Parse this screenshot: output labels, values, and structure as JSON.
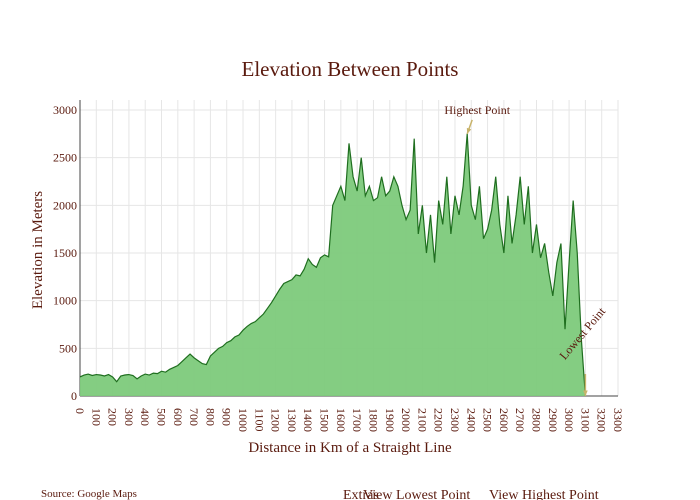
{
  "chart_data": {
    "type": "area",
    "title": "Elevation Between Points",
    "xlabel": "Distance in Km of a Straight Line",
    "ylabel": "Elevation in Meters",
    "x": [
      0,
      25,
      50,
      75,
      100,
      125,
      150,
      175,
      200,
      225,
      250,
      275,
      300,
      325,
      350,
      375,
      400,
      425,
      450,
      475,
      500,
      525,
      550,
      575,
      600,
      625,
      650,
      675,
      700,
      725,
      750,
      775,
      800,
      825,
      850,
      875,
      900,
      925,
      950,
      975,
      1000,
      1025,
      1050,
      1075,
      1100,
      1125,
      1150,
      1175,
      1200,
      1225,
      1250,
      1275,
      1300,
      1325,
      1350,
      1375,
      1400,
      1425,
      1450,
      1475,
      1500,
      1525,
      1550,
      1575,
      1600,
      1625,
      1650,
      1675,
      1700,
      1725,
      1750,
      1775,
      1800,
      1825,
      1850,
      1875,
      1900,
      1925,
      1950,
      1975,
      2000,
      2025,
      2050,
      2075,
      2100,
      2125,
      2150,
      2175,
      2200,
      2225,
      2250,
      2275,
      2300,
      2325,
      2350,
      2375,
      2400,
      2425,
      2450,
      2475,
      2500,
      2525,
      2550,
      2575,
      2600,
      2625,
      2650,
      2675,
      2700,
      2725,
      2750,
      2775,
      2800,
      2825,
      2850,
      2875,
      2900,
      2925,
      2950,
      2975,
      3000,
      3025,
      3050,
      3075,
      3100
    ],
    "values": [
      200,
      220,
      230,
      215,
      225,
      220,
      210,
      225,
      200,
      150,
      210,
      220,
      225,
      215,
      180,
      210,
      230,
      220,
      240,
      235,
      260,
      250,
      280,
      300,
      320,
      360,
      400,
      440,
      400,
      370,
      340,
      330,
      420,
      460,
      500,
      520,
      560,
      580,
      620,
      640,
      690,
      730,
      760,
      780,
      820,
      860,
      920,
      980,
      1050,
      1120,
      1180,
      1200,
      1220,
      1270,
      1260,
      1330,
      1440,
      1380,
      1350,
      1450,
      1480,
      1460,
      2000,
      2100,
      2200,
      2050,
      2650,
      2300,
      2150,
      2500,
      2100,
      2200,
      2050,
      2080,
      2300,
      2100,
      2150,
      2300,
      2200,
      2000,
      1850,
      1950,
      2700,
      1700,
      2000,
      1500,
      1900,
      1400,
      2050,
      1800,
      2300,
      1700,
      2100,
      1900,
      2200,
      2750,
      2000,
      1850,
      2200,
      1650,
      1750,
      1950,
      2300,
      1800,
      1500,
      2100,
      1600,
      1900,
      2300,
      1800,
      2200,
      1500,
      1800,
      1450,
      1600,
      1300,
      1050,
      1400,
      1600,
      700,
      1400,
      2050,
      1500,
      600,
      0
    ],
    "color": "#7dca7b",
    "line_color": "#1f6e1f",
    "xlim": [
      0,
      3300
    ],
    "xticks": [
      0,
      100,
      200,
      300,
      400,
      500,
      600,
      700,
      800,
      900,
      1000,
      1100,
      1200,
      1300,
      1400,
      1500,
      1600,
      1700,
      1800,
      1900,
      2000,
      2100,
      2200,
      2300,
      2400,
      2500,
      2600,
      2700,
      2800,
      2900,
      3000,
      3100,
      3200,
      3300
    ],
    "ylim": [
      0,
      3000
    ],
    "yticks": [
      0,
      500,
      1000,
      1500,
      2000,
      2500,
      3000
    ],
    "grid": true,
    "annotations": [
      {
        "text": "Highest Point",
        "x": 2375,
        "y": 2750
      },
      {
        "text": "Lowest Point",
        "x": 3100,
        "y": 0
      }
    ]
  },
  "footer": {
    "source": "Source: Google Maps",
    "links": [
      "Extras",
      "View Lowest Point",
      "View Highest Point"
    ]
  }
}
